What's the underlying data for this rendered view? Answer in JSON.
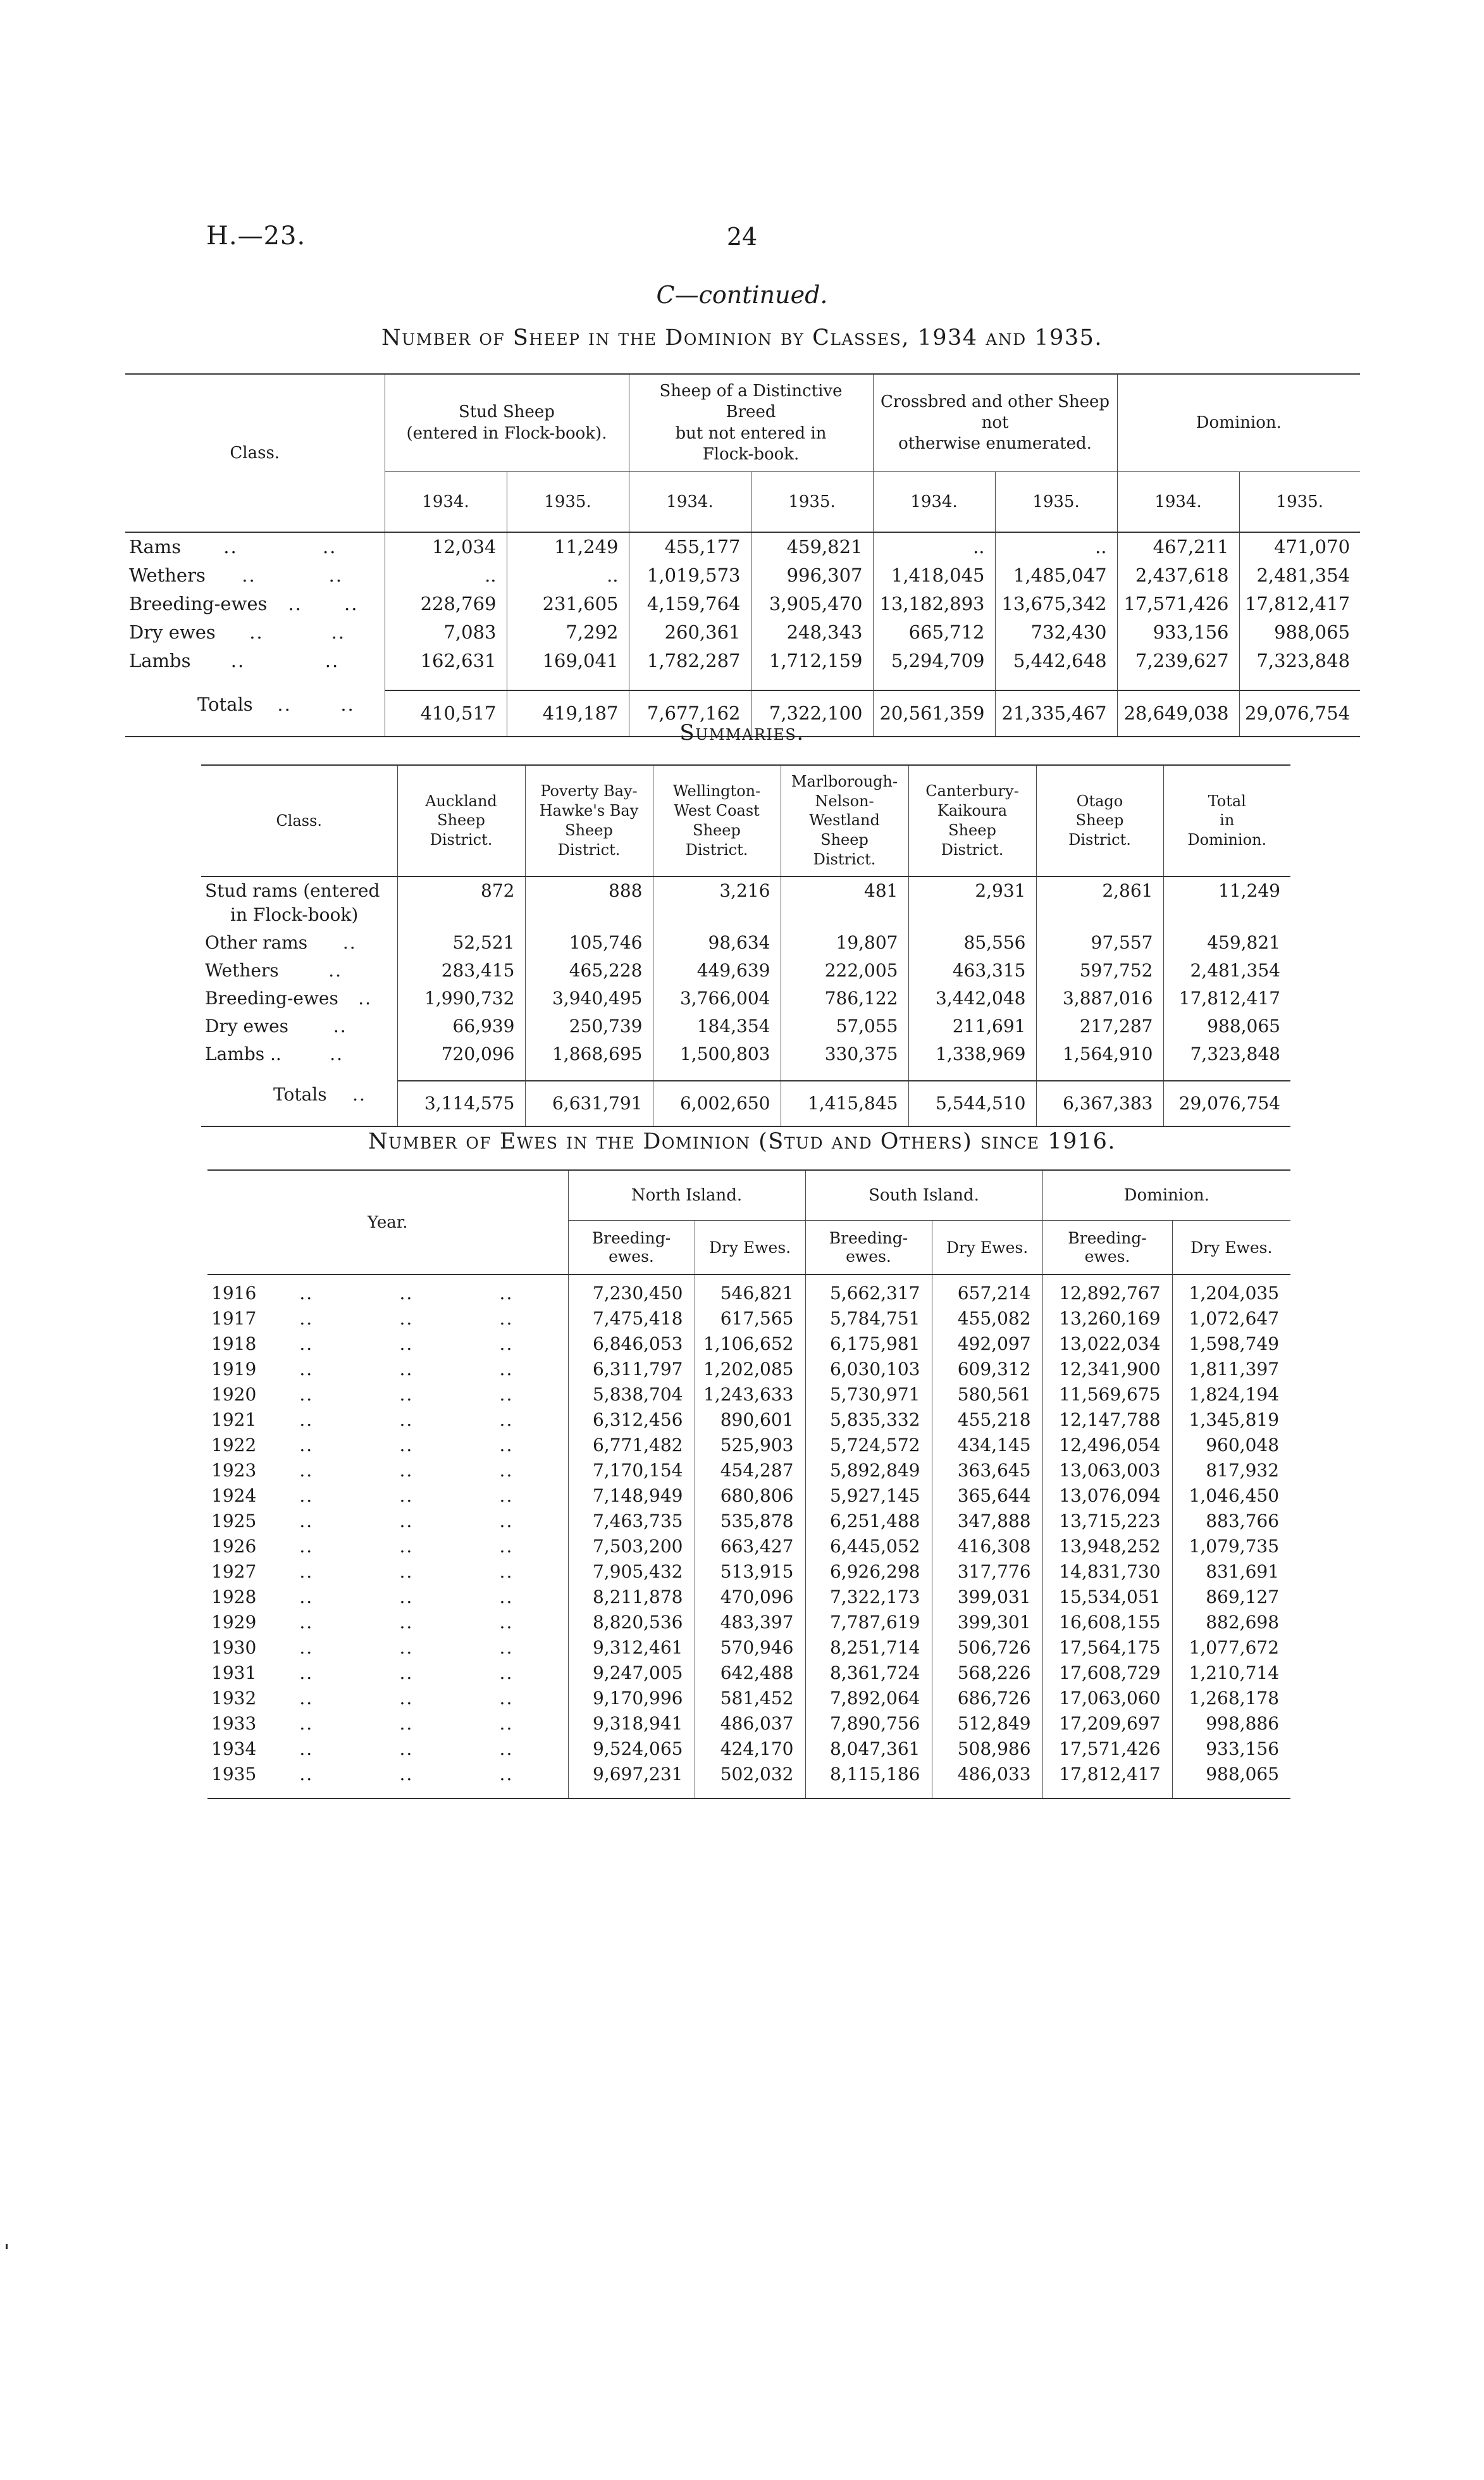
{
  "page": {
    "doc_ref": "H.—23.",
    "page_number": "24",
    "continued": "C—continued.",
    "leader": ".."
  },
  "table1": {
    "title": "Number of Sheep in the Dominion by Classes, 1934 and 1935.",
    "class_header": "Class.",
    "groups": [
      "Stud Sheep\n(entered in Flock-book).",
      "Sheep of a Distinctive Breed\nbut not entered in\nFlock-book.",
      "Crossbred and other Sheep not\notherwise enumerated.",
      "Dominion."
    ],
    "year_headers": [
      "1934.",
      "1935.",
      "1934.",
      "1935.",
      "1934.",
      "1935.",
      "1934.",
      "1935."
    ],
    "rows": [
      {
        "label": "Rams",
        "values": [
          "12,034",
          "11,249",
          "455,177",
          "459,821",
          "..",
          "..",
          "467,211",
          "471,070"
        ]
      },
      {
        "label": "Wethers",
        "values": [
          "..",
          "..",
          "1,019,573",
          "996,307",
          "1,418,045",
          "1,485,047",
          "2,437,618",
          "2,481,354"
        ]
      },
      {
        "label": "Breeding-ewes",
        "values": [
          "228,769",
          "231,605",
          "4,159,764",
          "3,905,470",
          "13,182,893",
          "13,675,342",
          "17,571,426",
          "17,812,417"
        ]
      },
      {
        "label": "Dry ewes",
        "values": [
          "7,083",
          "7,292",
          "260,361",
          "248,343",
          "665,712",
          "732,430",
          "933,156",
          "988,065"
        ]
      },
      {
        "label": "Lambs",
        "values": [
          "162,631",
          "169,041",
          "1,782,287",
          "1,712,159",
          "5,294,709",
          "5,442,648",
          "7,239,627",
          "7,323,848"
        ]
      }
    ],
    "totals": {
      "label": "Totals",
      "values": [
        "410,517",
        "419,187",
        "7,677,162",
        "7,322,100",
        "20,561,359",
        "21,335,467",
        "28,649,038",
        "29,076,754"
      ]
    }
  },
  "table2": {
    "title": "Summaries.",
    "class_header": "Class.",
    "columns": [
      "Auckland\nSheep\nDistrict.",
      "Poverty Bay-\nHawke's Bay\nSheep\nDistrict.",
      "Wellington-\nWest Coast\nSheep\nDistrict.",
      "Marlborough-\nNelson-Westland\nSheep\nDistrict.",
      "Canterbury-\nKaikoura\nSheep\nDistrict.",
      "Otago\nSheep\nDistrict.",
      "Total\nin\nDominion."
    ],
    "rows": [
      {
        "label": "Stud rams (entered\nin Flock-book)",
        "leaders": 0,
        "values": [
          "872",
          "888",
          "3,216",
          "481",
          "2,931",
          "2,861",
          "11,249"
        ]
      },
      {
        "label": "Other rams",
        "leaders": 1,
        "values": [
          "52,521",
          "105,746",
          "98,634",
          "19,807",
          "85,556",
          "97,557",
          "459,821"
        ]
      },
      {
        "label": "Wethers",
        "leaders": 1,
        "values": [
          "283,415",
          "465,228",
          "449,639",
          "222,005",
          "463,315",
          "597,752",
          "2,481,354"
        ]
      },
      {
        "label": "Breeding-ewes",
        "leaders": 1,
        "values": [
          "1,990,732",
          "3,940,495",
          "3,766,004",
          "786,122",
          "3,442,048",
          "3,887,016",
          "17,812,417"
        ]
      },
      {
        "label": "Dry ewes",
        "leaders": 1,
        "values": [
          "66,939",
          "250,739",
          "184,354",
          "57,055",
          "211,691",
          "217,287",
          "988,065"
        ]
      },
      {
        "label": "Lambs ..",
        "leaders": 1,
        "values": [
          "720,096",
          "1,868,695",
          "1,500,803",
          "330,375",
          "1,338,969",
          "1,564,910",
          "7,323,848"
        ]
      }
    ],
    "totals": {
      "label": "Totals",
      "values": [
        "3,114,575",
        "6,631,791",
        "6,002,650",
        "1,415,845",
        "5,544,510",
        "6,367,383",
        "29,076,754"
      ]
    }
  },
  "table3": {
    "title": "Number of Ewes in the Dominion (Stud and Others) since 1916.",
    "year_header": "Year.",
    "groups": [
      "North Island.",
      "South Island.",
      "Dominion."
    ],
    "sub_columns": [
      "Breeding-ewes.",
      "Dry Ewes.",
      "Breeding-ewes.",
      "Dry Ewes.",
      "Breeding-ewes.",
      "Dry Ewes."
    ],
    "rows": [
      {
        "year": "1916",
        "values": [
          "7,230,450",
          "546,821",
          "5,662,317",
          "657,214",
          "12,892,767",
          "1,204,035"
        ]
      },
      {
        "year": "1917",
        "values": [
          "7,475,418",
          "617,565",
          "5,784,751",
          "455,082",
          "13,260,169",
          "1,072,647"
        ]
      },
      {
        "year": "1918",
        "values": [
          "6,846,053",
          "1,106,652",
          "6,175,981",
          "492,097",
          "13,022,034",
          "1,598,749"
        ]
      },
      {
        "year": "1919",
        "values": [
          "6,311,797",
          "1,202,085",
          "6,030,103",
          "609,312",
          "12,341,900",
          "1,811,397"
        ]
      },
      {
        "year": "1920",
        "values": [
          "5,838,704",
          "1,243,633",
          "5,730,971",
          "580,561",
          "11,569,675",
          "1,824,194"
        ]
      },
      {
        "year": "1921",
        "values": [
          "6,312,456",
          "890,601",
          "5,835,332",
          "455,218",
          "12,147,788",
          "1,345,819"
        ]
      },
      {
        "year": "1922",
        "values": [
          "6,771,482",
          "525,903",
          "5,724,572",
          "434,145",
          "12,496,054",
          "960,048"
        ]
      },
      {
        "year": "1923",
        "values": [
          "7,170,154",
          "454,287",
          "5,892,849",
          "363,645",
          "13,063,003",
          "817,932"
        ]
      },
      {
        "year": "1924",
        "values": [
          "7,148,949",
          "680,806",
          "5,927,145",
          "365,644",
          "13,076,094",
          "1,046,450"
        ]
      },
      {
        "year": "1925",
        "values": [
          "7,463,735",
          "535,878",
          "6,251,488",
          "347,888",
          "13,715,223",
          "883,766"
        ]
      },
      {
        "year": "1926",
        "values": [
          "7,503,200",
          "663,427",
          "6,445,052",
          "416,308",
          "13,948,252",
          "1,079,735"
        ]
      },
      {
        "year": "1927",
        "values": [
          "7,905,432",
          "513,915",
          "6,926,298",
          "317,776",
          "14,831,730",
          "831,691"
        ]
      },
      {
        "year": "1928",
        "values": [
          "8,211,878",
          "470,096",
          "7,322,173",
          "399,031",
          "15,534,051",
          "869,127"
        ]
      },
      {
        "year": "1929",
        "values": [
          "8,820,536",
          "483,397",
          "7,787,619",
          "399,301",
          "16,608,155",
          "882,698"
        ]
      },
      {
        "year": "1930",
        "values": [
          "9,312,461",
          "570,946",
          "8,251,714",
          "506,726",
          "17,564,175",
          "1,077,672"
        ]
      },
      {
        "year": "1931",
        "values": [
          "9,247,005",
          "642,488",
          "8,361,724",
          "568,226",
          "17,608,729",
          "1,210,714"
        ]
      },
      {
        "year": "1932",
        "values": [
          "9,170,996",
          "581,452",
          "7,892,064",
          "686,726",
          "17,063,060",
          "1,268,178"
        ]
      },
      {
        "year": "1933",
        "values": [
          "9,318,941",
          "486,037",
          "7,890,756",
          "512,849",
          "17,209,697",
          "998,886"
        ]
      },
      {
        "year": "1934",
        "values": [
          "9,524,065",
          "424,170",
          "8,047,361",
          "508,986",
          "17,571,426",
          "933,156"
        ]
      },
      {
        "year": "1935",
        "values": [
          "9,697,231",
          "502,032",
          "8,115,186",
          "486,033",
          "17,812,417",
          "988,065"
        ]
      }
    ]
  }
}
